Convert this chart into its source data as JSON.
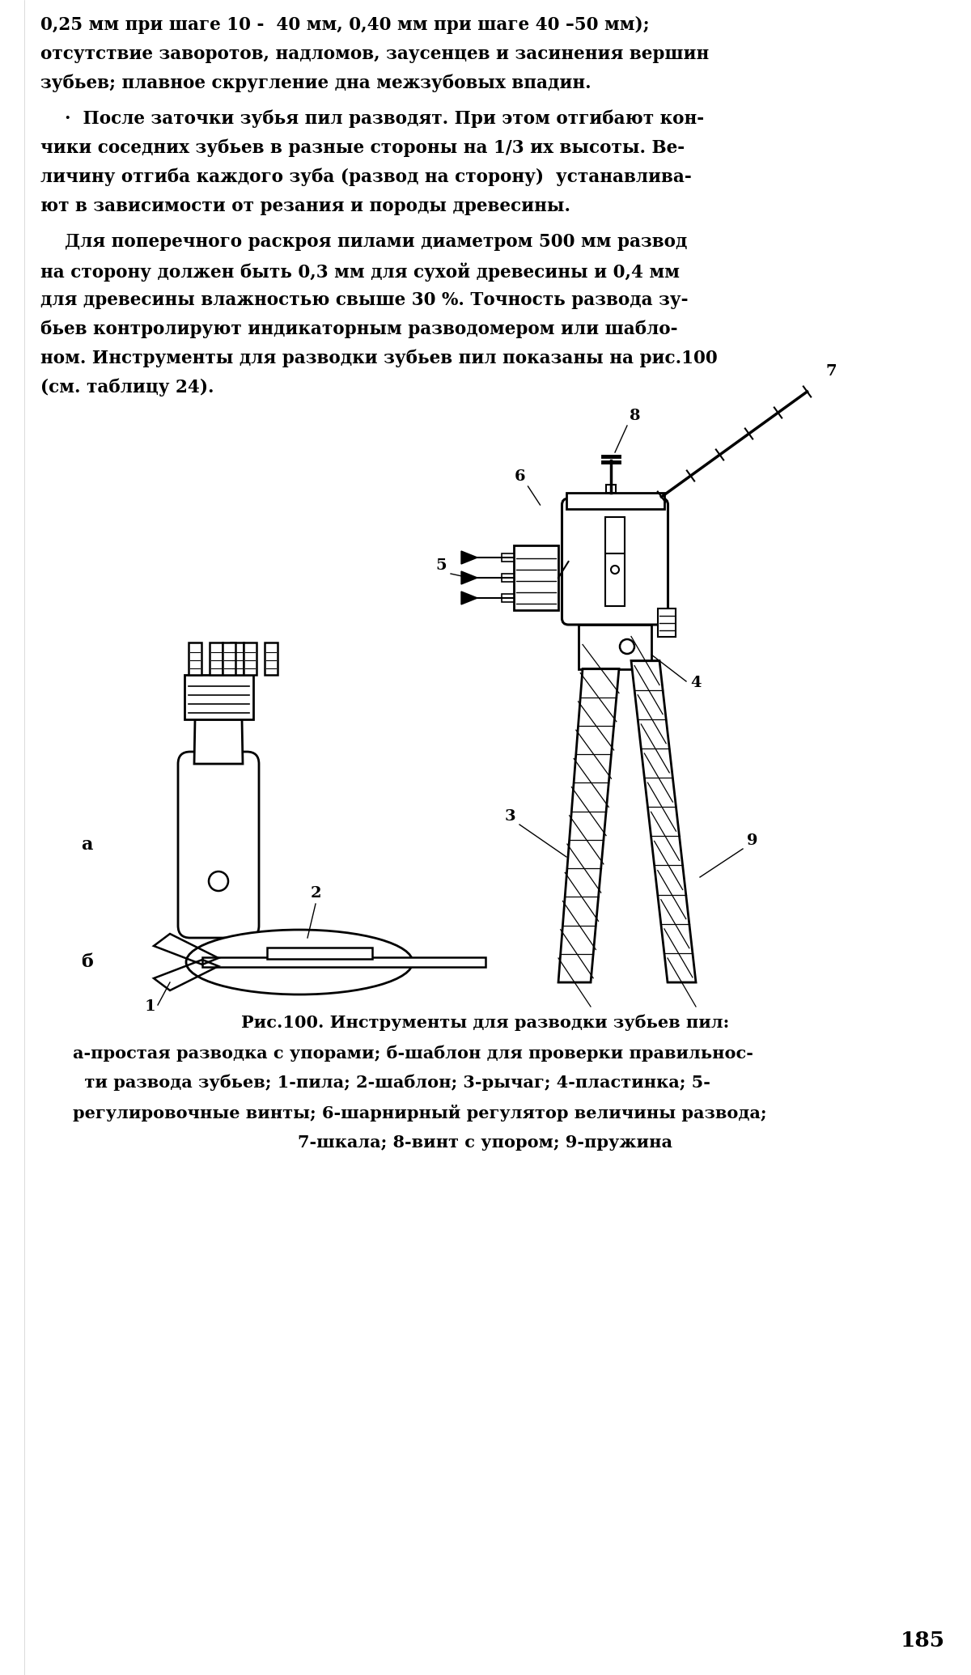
{
  "bg_color": "#ffffff",
  "text_color": "#000000",
  "page_number": "185",
  "p1_lines": [
    "0,25 мм при шаге 10 -  40 мм, 0,40 мм при шаге 40 –50 мм);",
    "отсутствие заворотов, надломов, заусенцев и засинения вершин",
    "зубьев; плавное скругление дна межзубовых впадин."
  ],
  "p2_lines": [
    "    ·  После заточки зубья пил разводят. При этом отгибают кон-",
    "чики соседних зубьев в разные стороны на 1/3 их высоты. Ве-",
    "личину отгиба каждого зуба (развод на сторону)  устанавлива-",
    "ют в зависимости от резания и породы древесины."
  ],
  "p3_lines": [
    "    Для поперечного раскроя пилами диаметром 500 мм развод",
    "на сторону должен быть 0,3 мм для сухой древесины и 0,4 мм",
    "для древесины влажностью свыше 30 %. Точность развода зу-",
    "бьев контролируют индикаторным разводомером или шабло-",
    "ном. Инструменты для разводки зубьев пил показаны на рис.100",
    "(см. таблицу 24)."
  ],
  "caption_lines": [
    [
      "center",
      "Рис.100. Инструменты для разводки зубьев пил:"
    ],
    [
      "left",
      "а-простая разводка с упорами; б-шаблон для проверки правильнос-"
    ],
    [
      "left",
      "  ти развода зубьев; 1-пила; 2-шаблон; 3-рычаг; 4-пластинка; 5-"
    ],
    [
      "left",
      "регулировочные винты; 6-шарнирный регулятор величины развода;"
    ],
    [
      "center",
      "7-шкала; 8-винт с упором; 9-пружина"
    ]
  ],
  "label_a": "а",
  "label_b": "б"
}
